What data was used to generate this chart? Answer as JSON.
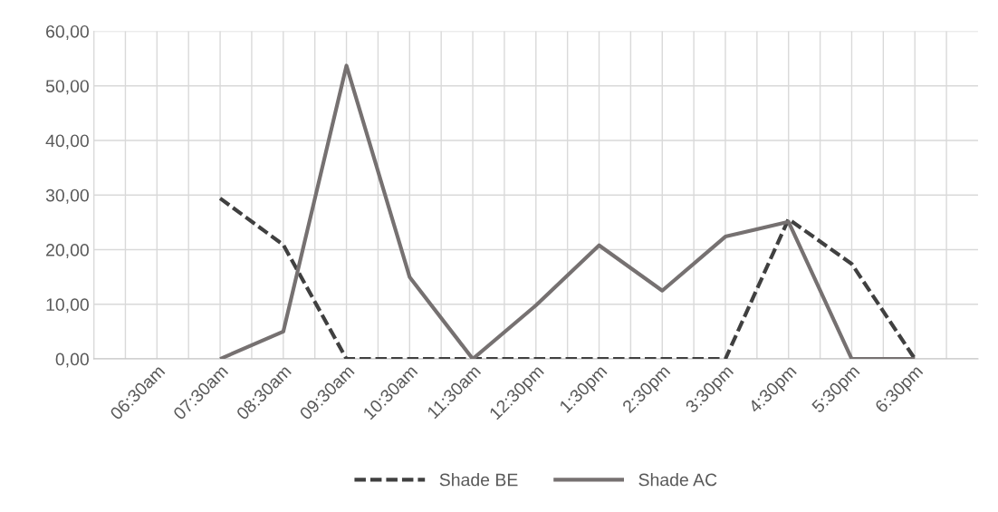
{
  "chart_data": {
    "type": "line",
    "categories": [
      "06:30am",
      "07:30am",
      "08:30am",
      "09:30am",
      "10:30am",
      "11:30am",
      "12:30pm",
      "1:30pm",
      "2:30pm",
      "3:30pm",
      "4:30pm",
      "5:30pm",
      "6:30pm"
    ],
    "series": [
      {
        "name": "Shade BE",
        "color": "#404040",
        "line_style": "dashed",
        "values": [
          null,
          29.4,
          20.9,
          0,
          0,
          0,
          0,
          0,
          0,
          0,
          25.6,
          17.4,
          0
        ]
      },
      {
        "name": "Shade AC",
        "color": "#767171",
        "line_style": "solid",
        "values": [
          null,
          0,
          5.0,
          53.7,
          15.0,
          0,
          9.8,
          20.8,
          12.5,
          22.4,
          25.1,
          0,
          0
        ]
      }
    ],
    "ylim": [
      0,
      60
    ],
    "yticks": [
      {
        "value": 0,
        "label": "0,00"
      },
      {
        "value": 10,
        "label": "10,00"
      },
      {
        "value": 20,
        "label": "20,00"
      },
      {
        "value": 30,
        "label": "30,00"
      },
      {
        "value": 40,
        "label": "40,00"
      },
      {
        "value": 50,
        "label": "50,00"
      },
      {
        "value": 60,
        "label": "60,00"
      }
    ],
    "grid": true,
    "legend": "bottom",
    "marker": "none"
  }
}
